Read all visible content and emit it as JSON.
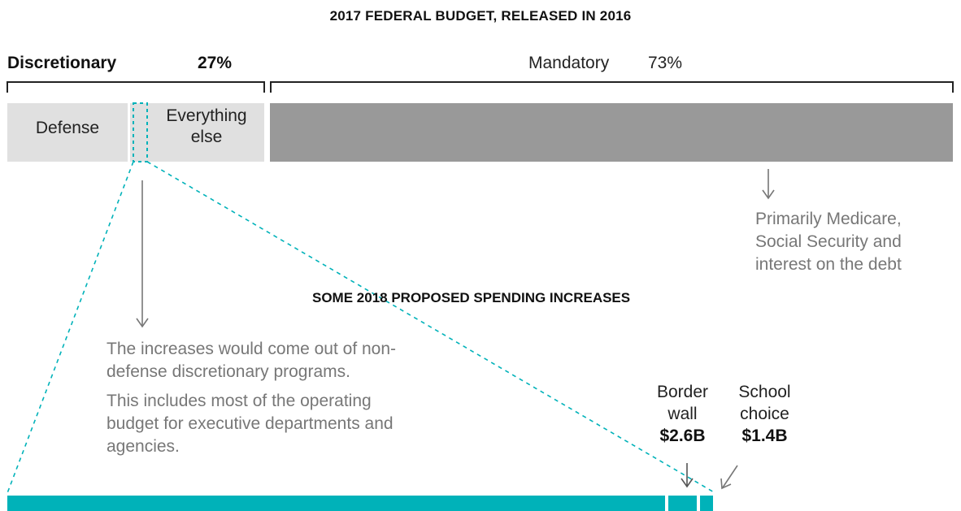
{
  "title": "2017 FEDERAL BUDGET, RELEASED IN 2016",
  "subtitle": "SOME 2018 PROPOSED SPENDING INCREASES",
  "colors": {
    "discretionary": "#e0e0e0",
    "mandatory": "#999999",
    "highlight": "#00b2b9",
    "bracket": "#222222",
    "arrow": "#777777"
  },
  "chart_data": [
    {
      "type": "bar",
      "title": "2017 FEDERAL BUDGET, RELEASED IN 2016",
      "orientation": "horizontal-stacked",
      "groups": [
        {
          "name": "Discretionary",
          "percent_label": "27%",
          "value": 27
        },
        {
          "name": "Mandatory",
          "percent_label": "73%",
          "value": 73
        }
      ],
      "segments": [
        {
          "label": "Defense",
          "group": "Discretionary",
          "color": "#e0e0e0"
        },
        {
          "label": "Everything else",
          "group": "Discretionary",
          "color": "#e0e0e0"
        },
        {
          "label": "",
          "group": "Mandatory",
          "color": "#999999"
        }
      ],
      "annotations": [
        "Primarily Medicare, Social Security and interest on the debt",
        "The increases would come out of non-defense discretionary programs.",
        "This includes most of the operating budget for executive departments and agencies."
      ]
    },
    {
      "type": "bar",
      "title": "SOME 2018 PROPOSED SPENDING INCREASES",
      "orientation": "horizontal-stacked",
      "unit": "billion USD",
      "items": [
        {
          "label": "Border wall",
          "value": 2.6,
          "value_label": "$2.6B"
        },
        {
          "label": "School choice",
          "value": 1.4,
          "value_label": "$1.4B"
        }
      ]
    }
  ],
  "labels": {
    "discretionary": "Discretionary",
    "discretionary_pct": "27%",
    "mandatory": "Mandatory",
    "mandatory_pct": "73%",
    "defense": "Defense",
    "everything_line1": "Everything",
    "everything_line2": "else",
    "mandatory_note_1": "Primarily Medicare,",
    "mandatory_note_2": "Social Security and",
    "mandatory_note_3": "interest on the debt",
    "nondef_note_1": "The increases would come out of non-",
    "nondef_note_2": "defense discretionary programs.",
    "nondef_note_3": "This includes most of the operating",
    "nondef_note_4": "budget for executive departments and",
    "nondef_note_5": "agencies.",
    "border_1": "Border",
    "border_2": "wall",
    "border_val": "$2.6B",
    "school_1": "School",
    "school_2": "choice",
    "school_val": "$1.4B"
  }
}
